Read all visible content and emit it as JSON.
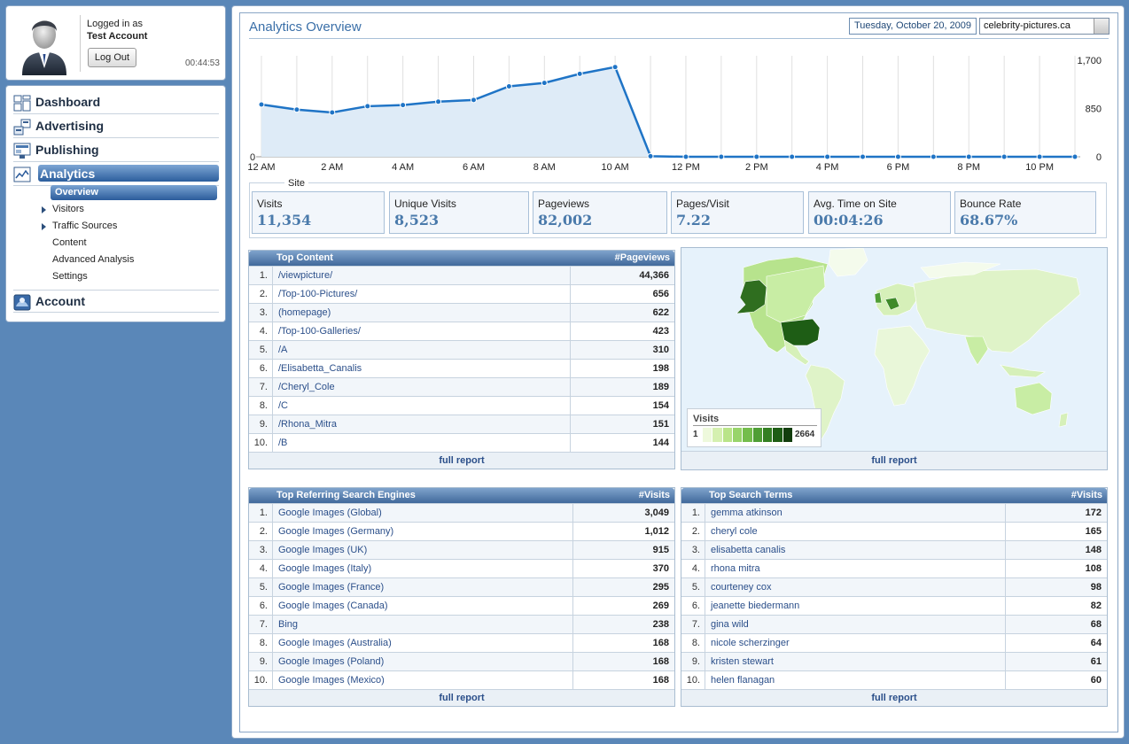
{
  "user": {
    "logged_label": "Logged in as",
    "account": "Test Account",
    "logout_label": "Log Out",
    "clock": "00:44:53"
  },
  "nav": {
    "main": [
      {
        "label": "Dashboard",
        "icon": "dashboard-icon"
      },
      {
        "label": "Advertising",
        "icon": "advertising-icon"
      },
      {
        "label": "Publishing",
        "icon": "publishing-icon"
      },
      {
        "label": "Analytics",
        "icon": "analytics-icon"
      },
      {
        "label": "Account",
        "icon": "account-icon"
      }
    ],
    "analytics_sub": [
      {
        "label": "Overview",
        "active": true
      },
      {
        "label": "Visitors",
        "expandable": true
      },
      {
        "label": "Traffic Sources",
        "expandable": true
      },
      {
        "label": "Content"
      },
      {
        "label": "Advanced Analysis"
      },
      {
        "label": "Settings"
      }
    ]
  },
  "header": {
    "title": "Analytics Overview",
    "date": "Tuesday, October 20, 2009",
    "site": "celebrity-pictures.ca"
  },
  "chart_data": {
    "type": "area",
    "x": [
      "12 AM",
      "1 AM",
      "2 AM",
      "3 AM",
      "4 AM",
      "5 AM",
      "6 AM",
      "7 AM",
      "8 AM",
      "9 AM",
      "10 AM",
      "11 AM",
      "12 PM",
      "1 PM",
      "2 PM",
      "3 PM",
      "4 PM",
      "5 PM",
      "6 PM",
      "7 PM",
      "8 PM",
      "9 PM",
      "10 PM",
      "11 PM"
    ],
    "x_tick_labels": [
      "12 AM",
      "2 AM",
      "4 AM",
      "6 AM",
      "8 AM",
      "10 AM",
      "12 PM",
      "2 PM",
      "4 PM",
      "6 PM",
      "8 PM",
      "10 PM"
    ],
    "values": [
      920,
      830,
      780,
      890,
      910,
      970,
      1000,
      1240,
      1300,
      1460,
      1580,
      10,
      0,
      0,
      0,
      0,
      0,
      0,
      0,
      0,
      0,
      0,
      0,
      0
    ],
    "y_ticks_left": [
      "0"
    ],
    "y_ticks_right": [
      "1,700",
      "850",
      "0"
    ],
    "ylim": [
      0,
      1700
    ],
    "color": "#1f74c6",
    "fill": "#deebf7",
    "grid": true
  },
  "site": {
    "legend": "Site",
    "stats": [
      {
        "label": "Visits",
        "value": "11,354"
      },
      {
        "label": "Unique Visits",
        "value": "8,523"
      },
      {
        "label": "Pageviews",
        "value": "82,002"
      },
      {
        "label": "Pages/Visit",
        "value": "7.22"
      },
      {
        "label": "Avg. Time on Site",
        "value": "00:04:26"
      },
      {
        "label": "Bounce Rate",
        "value": "68.67%"
      }
    ]
  },
  "top_content": {
    "title": "Top Content",
    "col": "#Pageviews",
    "footer": "full report",
    "rows": [
      {
        "n": "1.",
        "label": "/viewpicture/",
        "value": "44,366"
      },
      {
        "n": "2.",
        "label": "/Top-100-Pictures/",
        "value": "656"
      },
      {
        "n": "3.",
        "label": "(homepage)",
        "value": "622"
      },
      {
        "n": "4.",
        "label": "/Top-100-Galleries/",
        "value": "423"
      },
      {
        "n": "5.",
        "label": "/A",
        "value": "310"
      },
      {
        "n": "6.",
        "label": "/Elisabetta_Canalis",
        "value": "198"
      },
      {
        "n": "7.",
        "label": "/Cheryl_Cole",
        "value": "189"
      },
      {
        "n": "8.",
        "label": "/C",
        "value": "154"
      },
      {
        "n": "9.",
        "label": "/Rhona_Mitra",
        "value": "151"
      },
      {
        "n": "10.",
        "label": "/B",
        "value": "144"
      }
    ]
  },
  "map": {
    "legend_title": "Visits",
    "legend_min": "1",
    "legend_max": "2664",
    "footer": "full report",
    "scale_colors": [
      "#eef9dc",
      "#d5f0b0",
      "#b9e488",
      "#98d46a",
      "#74bd4c",
      "#4f9e35",
      "#337f22",
      "#1e5d15",
      "#123d0d"
    ]
  },
  "search_engines": {
    "title": "Top Referring Search Engines",
    "col": "#Visits",
    "footer": "full report",
    "rows": [
      {
        "n": "1.",
        "label": "Google Images (Global)",
        "value": "3,049"
      },
      {
        "n": "2.",
        "label": "Google Images (Germany)",
        "value": "1,012"
      },
      {
        "n": "3.",
        "label": "Google Images (UK)",
        "value": "915"
      },
      {
        "n": "4.",
        "label": "Google Images (Italy)",
        "value": "370"
      },
      {
        "n": "5.",
        "label": "Google Images (France)",
        "value": "295"
      },
      {
        "n": "6.",
        "label": "Google Images (Canada)",
        "value": "269"
      },
      {
        "n": "7.",
        "label": "Bing",
        "value": "238"
      },
      {
        "n": "8.",
        "label": "Google Images (Australia)",
        "value": "168"
      },
      {
        "n": "9.",
        "label": "Google Images (Poland)",
        "value": "168"
      },
      {
        "n": "10.",
        "label": "Google Images (Mexico)",
        "value": "168"
      }
    ]
  },
  "search_terms": {
    "title": "Top Search Terms",
    "col": "#Visits",
    "footer": "full report",
    "rows": [
      {
        "n": "1.",
        "label": "gemma atkinson",
        "value": "172"
      },
      {
        "n": "2.",
        "label": "cheryl cole",
        "value": "165"
      },
      {
        "n": "3.",
        "label": "elisabetta canalis",
        "value": "148"
      },
      {
        "n": "4.",
        "label": "rhona mitra",
        "value": "108"
      },
      {
        "n": "5.",
        "label": "courteney cox",
        "value": "98"
      },
      {
        "n": "6.",
        "label": "jeanette biedermann",
        "value": "82"
      },
      {
        "n": "7.",
        "label": "gina wild",
        "value": "68"
      },
      {
        "n": "8.",
        "label": "nicole scherzinger",
        "value": "64"
      },
      {
        "n": "9.",
        "label": "kristen stewart",
        "value": "61"
      },
      {
        "n": "10.",
        "label": "helen flanagan",
        "value": "60"
      }
    ]
  }
}
